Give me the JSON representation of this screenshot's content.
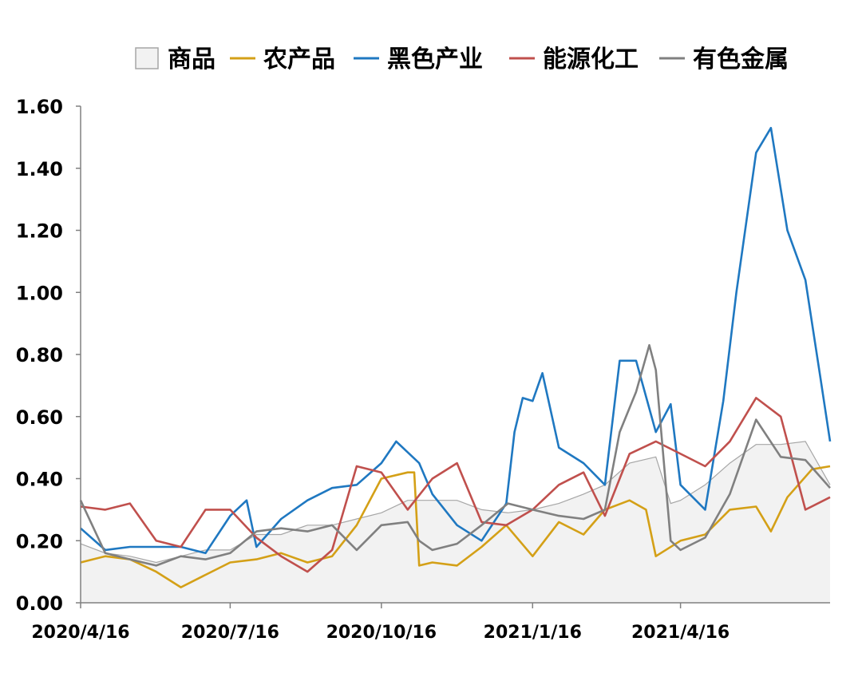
{
  "chart_data": {
    "type": "line",
    "legend_position": "top",
    "ylim": [
      0,
      1.6
    ],
    "yticks": [
      "0.00",
      "0.20",
      "0.40",
      "0.60",
      "0.80",
      "1.00",
      "1.20",
      "1.40",
      "1.60"
    ],
    "xlim": [
      "2020/4/16",
      "2021/7/16"
    ],
    "xticks": [
      "2020/4/16",
      "2020/7/16",
      "2020/10/16",
      "2021/1/16",
      "2021/4/16"
    ],
    "grid": false,
    "series": [
      {
        "name": "商品",
        "kind": "area",
        "color": "#a6a6a6",
        "fill": "#f2f2f2",
        "points": [
          [
            "2020/4/16",
            0.19
          ],
          [
            "2020/5/1",
            0.16
          ],
          [
            "2020/5/16",
            0.15
          ],
          [
            "2020/6/1",
            0.13
          ],
          [
            "2020/6/16",
            0.15
          ],
          [
            "2020/7/1",
            0.17
          ],
          [
            "2020/7/16",
            0.17
          ],
          [
            "2020/8/1",
            0.22
          ],
          [
            "2020/8/16",
            0.22
          ],
          [
            "2020/9/1",
            0.25
          ],
          [
            "2020/9/16",
            0.25
          ],
          [
            "2020/10/1",
            0.27
          ],
          [
            "2020/10/16",
            0.29
          ],
          [
            "2020/11/1",
            0.33
          ],
          [
            "2020/11/16",
            0.33
          ],
          [
            "2020/12/1",
            0.33
          ],
          [
            "2020/12/16",
            0.3
          ],
          [
            "2021/1/1",
            0.29
          ],
          [
            "2021/1/16",
            0.3
          ],
          [
            "2021/2/1",
            0.32
          ],
          [
            "2021/2/16",
            0.35
          ],
          [
            "2021/3/1",
            0.38
          ],
          [
            "2021/3/16",
            0.45
          ],
          [
            "2021/4/1",
            0.47
          ],
          [
            "2021/4/10",
            0.32
          ],
          [
            "2021/4/16",
            0.33
          ],
          [
            "2021/5/1",
            0.38
          ],
          [
            "2021/5/16",
            0.45
          ],
          [
            "2021/6/1",
            0.51
          ],
          [
            "2021/6/16",
            0.51
          ],
          [
            "2021/7/1",
            0.52
          ],
          [
            "2021/7/16",
            0.38
          ]
        ]
      },
      {
        "name": "农产品",
        "kind": "line",
        "color": "#d4a017",
        "points": [
          [
            "2020/4/16",
            0.13
          ],
          [
            "2020/5/1",
            0.15
          ],
          [
            "2020/5/16",
            0.14
          ],
          [
            "2020/6/1",
            0.1
          ],
          [
            "2020/6/16",
            0.05
          ],
          [
            "2020/7/1",
            0.09
          ],
          [
            "2020/7/16",
            0.13
          ],
          [
            "2020/8/1",
            0.14
          ],
          [
            "2020/8/16",
            0.16
          ],
          [
            "2020/9/1",
            0.13
          ],
          [
            "2020/9/16",
            0.15
          ],
          [
            "2020/10/1",
            0.25
          ],
          [
            "2020/10/16",
            0.4
          ],
          [
            "2020/11/1",
            0.42
          ],
          [
            "2020/11/5",
            0.42
          ],
          [
            "2020/11/8",
            0.12
          ],
          [
            "2020/11/16",
            0.13
          ],
          [
            "2020/12/1",
            0.12
          ],
          [
            "2020/12/16",
            0.18
          ],
          [
            "2020/12/31",
            0.25
          ],
          [
            "2021/1/16",
            0.15
          ],
          [
            "2021/2/1",
            0.26
          ],
          [
            "2021/2/16",
            0.22
          ],
          [
            "2021/3/1",
            0.3
          ],
          [
            "2021/3/16",
            0.33
          ],
          [
            "2021/3/26",
            0.3
          ],
          [
            "2021/4/1",
            0.15
          ],
          [
            "2021/4/16",
            0.2
          ],
          [
            "2021/5/1",
            0.22
          ],
          [
            "2021/5/16",
            0.3
          ],
          [
            "2021/6/1",
            0.31
          ],
          [
            "2021/6/10",
            0.23
          ],
          [
            "2021/6/20",
            0.34
          ],
          [
            "2021/7/5",
            0.43
          ],
          [
            "2021/7/16",
            0.44
          ]
        ]
      },
      {
        "name": "黑色产业",
        "kind": "line",
        "color": "#1f78c1",
        "points": [
          [
            "2020/4/16",
            0.24
          ],
          [
            "2020/5/1",
            0.17
          ],
          [
            "2020/5/16",
            0.18
          ],
          [
            "2020/6/1",
            0.18
          ],
          [
            "2020/6/16",
            0.18
          ],
          [
            "2020/7/1",
            0.16
          ],
          [
            "2020/7/16",
            0.28
          ],
          [
            "2020/7/26",
            0.33
          ],
          [
            "2020/8/1",
            0.18
          ],
          [
            "2020/8/16",
            0.27
          ],
          [
            "2020/9/1",
            0.33
          ],
          [
            "2020/9/16",
            0.37
          ],
          [
            "2020/10/1",
            0.38
          ],
          [
            "2020/10/16",
            0.45
          ],
          [
            "2020/10/25",
            0.52
          ],
          [
            "2020/11/8",
            0.45
          ],
          [
            "2020/11/16",
            0.35
          ],
          [
            "2020/12/1",
            0.25
          ],
          [
            "2020/12/16",
            0.2
          ],
          [
            "2020/12/31",
            0.32
          ],
          [
            "2021/1/5",
            0.55
          ],
          [
            "2021/1/10",
            0.66
          ],
          [
            "2021/1/16",
            0.65
          ],
          [
            "2021/1/22",
            0.74
          ],
          [
            "2021/2/1",
            0.5
          ],
          [
            "2021/2/16",
            0.45
          ],
          [
            "2021/3/1",
            0.38
          ],
          [
            "2021/3/10",
            0.78
          ],
          [
            "2021/3/20",
            0.78
          ],
          [
            "2021/4/1",
            0.55
          ],
          [
            "2021/4/10",
            0.64
          ],
          [
            "2021/4/16",
            0.38
          ],
          [
            "2021/5/1",
            0.3
          ],
          [
            "2021/5/12",
            0.65
          ],
          [
            "2021/5/20",
            1.0
          ],
          [
            "2021/6/1",
            1.45
          ],
          [
            "2021/6/10",
            1.53
          ],
          [
            "2021/6/20",
            1.2
          ],
          [
            "2021/7/1",
            1.04
          ],
          [
            "2021/7/10",
            0.73
          ],
          [
            "2021/7/16",
            0.52
          ]
        ]
      },
      {
        "name": "能源化工",
        "kind": "line",
        "color": "#c0504d",
        "points": [
          [
            "2020/4/16",
            0.31
          ],
          [
            "2020/5/1",
            0.3
          ],
          [
            "2020/5/16",
            0.32
          ],
          [
            "2020/6/1",
            0.2
          ],
          [
            "2020/6/16",
            0.18
          ],
          [
            "2020/7/1",
            0.3
          ],
          [
            "2020/7/16",
            0.3
          ],
          [
            "2020/8/1",
            0.21
          ],
          [
            "2020/8/16",
            0.15
          ],
          [
            "2020/9/1",
            0.1
          ],
          [
            "2020/9/16",
            0.17
          ],
          [
            "2020/10/1",
            0.44
          ],
          [
            "2020/10/16",
            0.42
          ],
          [
            "2020/11/1",
            0.3
          ],
          [
            "2020/11/16",
            0.4
          ],
          [
            "2020/12/1",
            0.45
          ],
          [
            "2020/12/16",
            0.26
          ],
          [
            "2020/12/31",
            0.25
          ],
          [
            "2021/1/16",
            0.3
          ],
          [
            "2021/2/1",
            0.38
          ],
          [
            "2021/2/16",
            0.42
          ],
          [
            "2021/3/1",
            0.28
          ],
          [
            "2021/3/16",
            0.48
          ],
          [
            "2021/4/1",
            0.52
          ],
          [
            "2021/4/16",
            0.48
          ],
          [
            "2021/5/1",
            0.44
          ],
          [
            "2021/5/16",
            0.52
          ],
          [
            "2021/6/1",
            0.66
          ],
          [
            "2021/6/16",
            0.6
          ],
          [
            "2021/7/1",
            0.3
          ],
          [
            "2021/7/16",
            0.34
          ]
        ]
      },
      {
        "name": "有色金属",
        "kind": "line",
        "color": "#808080",
        "points": [
          [
            "2020/4/16",
            0.33
          ],
          [
            "2020/5/1",
            0.16
          ],
          [
            "2020/5/16",
            0.14
          ],
          [
            "2020/6/1",
            0.12
          ],
          [
            "2020/6/16",
            0.15
          ],
          [
            "2020/7/1",
            0.14
          ],
          [
            "2020/7/16",
            0.16
          ],
          [
            "2020/8/1",
            0.23
          ],
          [
            "2020/8/16",
            0.24
          ],
          [
            "2020/9/1",
            0.23
          ],
          [
            "2020/9/16",
            0.25
          ],
          [
            "2020/10/1",
            0.17
          ],
          [
            "2020/10/16",
            0.25
          ],
          [
            "2020/11/1",
            0.26
          ],
          [
            "2020/11/8",
            0.2
          ],
          [
            "2020/11/16",
            0.17
          ],
          [
            "2020/12/1",
            0.19
          ],
          [
            "2020/12/16",
            0.25
          ],
          [
            "2021/1/1",
            0.32
          ],
          [
            "2021/1/16",
            0.3
          ],
          [
            "2021/2/1",
            0.28
          ],
          [
            "2021/2/16",
            0.27
          ],
          [
            "2021/3/1",
            0.3
          ],
          [
            "2021/3/10",
            0.55
          ],
          [
            "2021/3/20",
            0.68
          ],
          [
            "2021/3/28",
            0.83
          ],
          [
            "2021/4/1",
            0.75
          ],
          [
            "2021/4/10",
            0.2
          ],
          [
            "2021/4/16",
            0.17
          ],
          [
            "2021/5/1",
            0.21
          ],
          [
            "2021/5/16",
            0.35
          ],
          [
            "2021/6/1",
            0.59
          ],
          [
            "2021/6/16",
            0.47
          ],
          [
            "2021/7/1",
            0.46
          ],
          [
            "2021/7/16",
            0.37
          ]
        ]
      }
    ]
  }
}
